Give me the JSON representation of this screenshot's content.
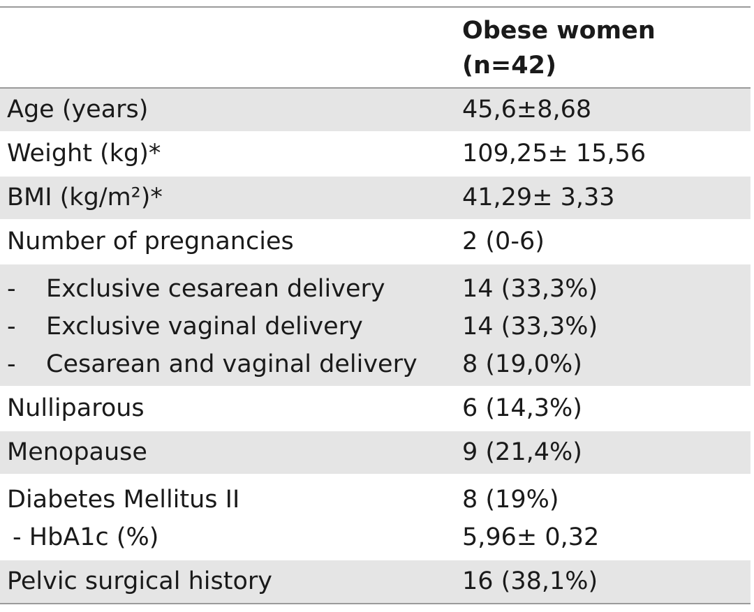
{
  "header": {
    "label": "",
    "value_lines": [
      "Obese women",
      "(n=42)"
    ]
  },
  "rows": [
    {
      "label": "Age (years)",
      "value": "45,6±8,68",
      "shade": true
    },
    {
      "label": "Weight  (kg)*",
      "value": "109,25± 15,56",
      "shade": false
    },
    {
      "label": "BMI (kg/m²)*",
      "value": "41,29± 3,33",
      "shade": true
    },
    {
      "label": "Number of pregnancies",
      "value": "2 (0-6)",
      "shade": false
    }
  ],
  "delivery_block": {
    "dash": "-",
    "items": [
      {
        "label": "Exclusive cesarean delivery",
        "value": "14 (33,3%)"
      },
      {
        "label": "Exclusive vaginal delivery",
        "value": "14 (33,3%)"
      },
      {
        "label": "Cesarean and vaginal delivery",
        "value": "8 (19,0%)"
      }
    ]
  },
  "rows2": [
    {
      "label": "Nulliparous",
      "value": "6 (14,3%)"
    },
    {
      "label": "Menopause",
      "value": "9 (21,4%)"
    }
  ],
  "diabetes_block": {
    "label": "Diabetes Mellitus II",
    "value": "8 (19%)",
    "sub_label": "- HbA1c (%)",
    "sub_value": "5,96± 0,32"
  },
  "last_row": {
    "label": "Pelvic surgical history",
    "value": "16 (38,1%)"
  }
}
